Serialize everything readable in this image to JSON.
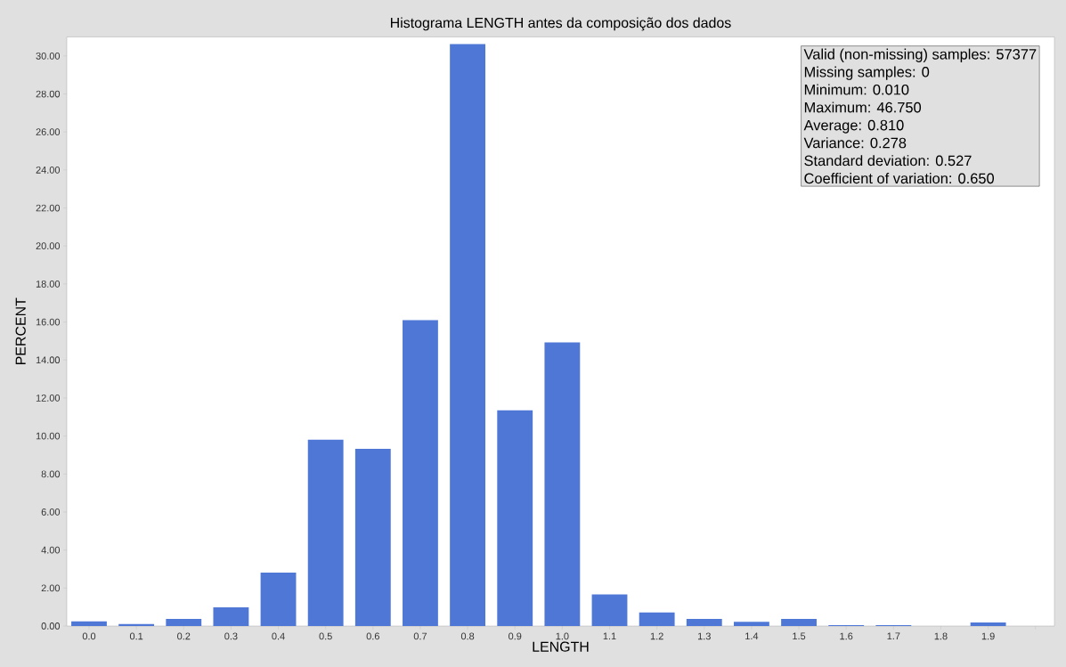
{
  "chart_data": {
    "type": "bar",
    "title": "Histograma LENGTH antes da composição dos dados",
    "xlabel": "LENGTH",
    "ylabel": "PERCENT",
    "categories": [
      "0.0",
      "0.1",
      "0.2",
      "0.3",
      "0.4",
      "0.5",
      "0.6",
      "0.7",
      "0.8",
      "0.9",
      "1.0",
      "1.1",
      "1.2",
      "1.3",
      "1.4",
      "1.5",
      "1.6",
      "1.7",
      "1.8",
      "1.9",
      null
    ],
    "values": [
      0.25,
      0.1,
      0.37,
      0.98,
      2.81,
      9.8,
      9.33,
      16.1,
      30.63,
      11.35,
      14.93,
      1.66,
      0.71,
      0.37,
      0.22,
      0.37,
      0.05,
      0.05,
      0,
      0.19,
      null
    ],
    "color": "#4f78d6",
    "ylim": [
      0,
      31
    ],
    "yticks": [
      {
        "value": 0,
        "label": "0.00"
      },
      {
        "value": 2,
        "label": "2.00"
      },
      {
        "value": 4,
        "label": "4.00"
      },
      {
        "value": 6,
        "label": "6.00"
      },
      {
        "value": 8,
        "label": "8.00"
      },
      {
        "value": 10,
        "label": "10.00"
      },
      {
        "value": 12,
        "label": "12.00"
      },
      {
        "value": 14,
        "label": "14.00"
      },
      {
        "value": 16,
        "label": "16.00"
      },
      {
        "value": 18,
        "label": "18.00"
      },
      {
        "value": 20,
        "label": "20.00"
      },
      {
        "value": 22,
        "label": "22.00"
      },
      {
        "value": 24,
        "label": "24.00"
      },
      {
        "value": 26,
        "label": "26.00"
      },
      {
        "value": 28,
        "label": "28.00"
      },
      {
        "value": 30,
        "label": "30.00"
      }
    ],
    "annotations": [
      "Valid (non-missing) samples: 57377",
      "Missing samples: 0",
      "Minimum: 0.010",
      "Maximum: 46.750",
      "Average: 0.810",
      "Variance: 0.278",
      "Standard deviation: 0.527",
      "Coefficient of variation: 0.650"
    ],
    "grid": false
  }
}
